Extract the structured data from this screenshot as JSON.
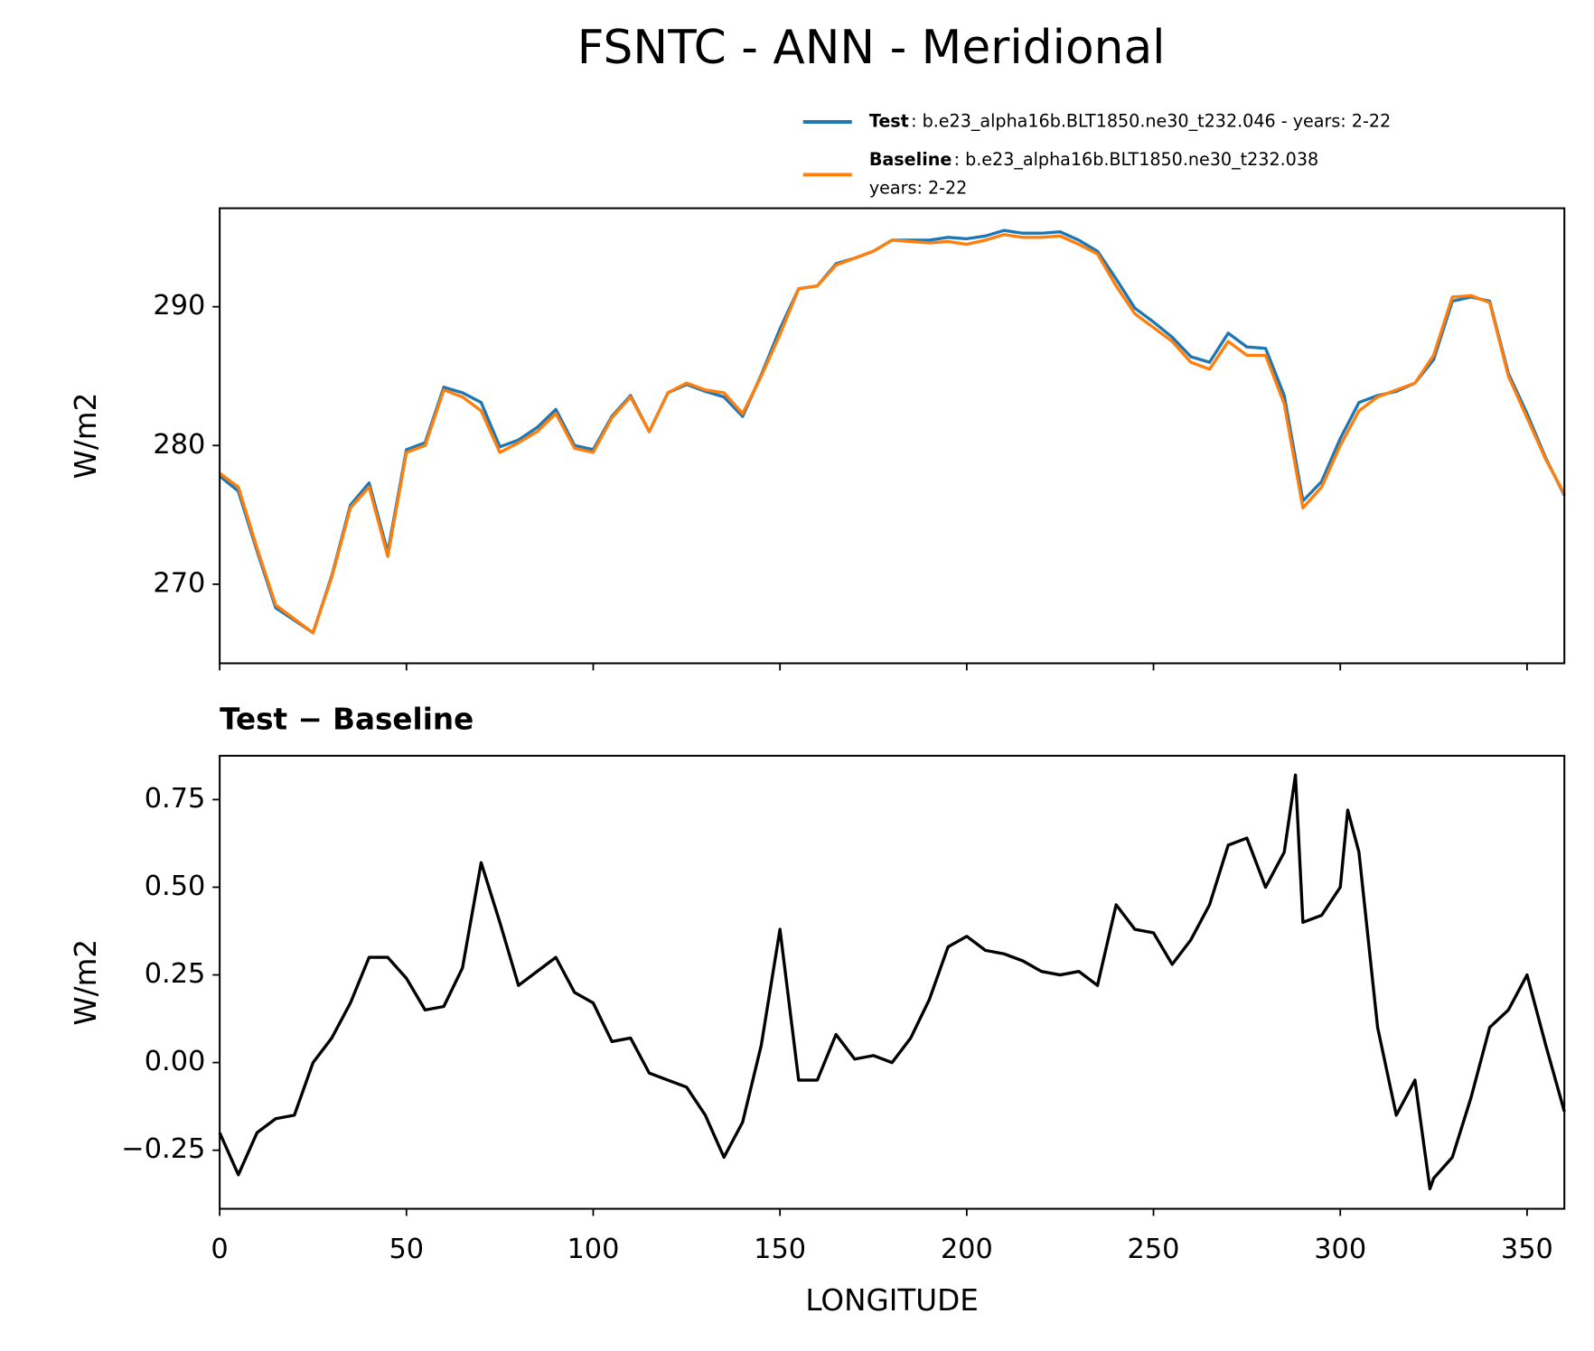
{
  "chart_data": [
    {
      "type": "line",
      "title": "FSNTC - ANN - Meridional",
      "ylabel": "W/m2",
      "x": [
        0,
        5,
        10,
        15,
        20,
        25,
        30,
        35,
        40,
        45,
        50,
        55,
        60,
        65,
        70,
        75,
        80,
        85,
        90,
        95,
        100,
        105,
        110,
        115,
        120,
        125,
        130,
        135,
        140,
        145,
        150,
        155,
        160,
        165,
        170,
        175,
        180,
        185,
        190,
        195,
        200,
        205,
        210,
        215,
        220,
        225,
        230,
        235,
        240,
        245,
        250,
        255,
        260,
        265,
        270,
        275,
        280,
        285,
        290,
        295,
        300,
        305,
        310,
        315,
        320,
        325,
        330,
        335,
        340,
        345,
        350,
        355,
        360
      ],
      "series": [
        {
          "name": "Test",
          "description": [
            ": b.e23_alpha16b.BLT1850.ne30_t232.046 - years: 2-22"
          ],
          "color": "#1f77b4",
          "values": [
            277.8,
            276.7,
            272.4,
            268.3,
            267.4,
            266.5,
            270.6,
            275.7,
            277.3,
            272.3,
            279.7,
            280.2,
            284.2,
            283.8,
            283.1,
            279.9,
            280.4,
            281.3,
            282.6,
            280.0,
            279.7,
            282.1,
            283.6,
            281.0,
            283.8,
            284.4,
            283.9,
            283.5,
            282.1,
            285.1,
            288.4,
            291.3,
            291.5,
            293.1,
            293.5,
            294.0,
            294.8,
            294.8,
            294.8,
            295.0,
            294.9,
            295.1,
            295.5,
            295.3,
            295.3,
            295.4,
            294.8,
            294.0,
            292.0,
            289.9,
            288.9,
            287.8,
            286.4,
            286.0,
            288.1,
            287.1,
            287.0,
            283.6,
            276.0,
            277.4,
            280.5,
            283.1,
            283.6,
            283.9,
            284.5,
            286.2,
            290.4,
            290.7,
            290.4,
            285.2,
            282.3,
            279.1,
            276.4
          ]
        },
        {
          "name": "Baseline",
          "description": [
            ": b.e23_alpha16b.BLT1850.ne30_t232.038",
            "years: 2-22"
          ],
          "color": "#ff7f0e",
          "values": [
            278.0,
            277.0,
            272.6,
            268.5,
            267.5,
            266.5,
            270.5,
            275.5,
            277.0,
            272.0,
            279.5,
            280.0,
            284.0,
            283.5,
            282.5,
            279.5,
            280.2,
            281.0,
            282.3,
            279.8,
            279.5,
            282.0,
            283.5,
            281.0,
            283.8,
            284.5,
            284.0,
            283.8,
            282.3,
            285.0,
            288.0,
            291.3,
            291.5,
            293.0,
            293.5,
            294.0,
            294.8,
            294.7,
            294.6,
            294.7,
            294.5,
            294.8,
            295.2,
            295.0,
            295.0,
            295.1,
            294.5,
            293.8,
            291.5,
            289.5,
            288.5,
            287.5,
            286.0,
            285.5,
            287.5,
            286.5,
            286.5,
            283.0,
            275.5,
            277.0,
            280.0,
            282.5,
            283.5,
            284.0,
            284.5,
            286.5,
            290.7,
            290.8,
            290.3,
            285.0,
            282.0,
            279.0,
            276.5
          ]
        }
      ],
      "xlim": [
        0,
        360
      ],
      "xticks": [
        0,
        50,
        100,
        150,
        200,
        250,
        300,
        350
      ],
      "ylim": [
        264.3,
        297.1
      ],
      "yticks": [
        270,
        280,
        290
      ],
      "legend": "upper right"
    },
    {
      "type": "line",
      "title": "Test − Baseline",
      "ylabel": "W/m2",
      "xlabel": "LONGITUDE",
      "color": "#000000",
      "x": [
        0,
        5,
        10,
        15,
        20,
        25,
        30,
        35,
        40,
        45,
        50,
        55,
        60,
        65,
        70,
        75,
        80,
        85,
        90,
        95,
        100,
        105,
        110,
        115,
        120,
        125,
        130,
        135,
        140,
        145,
        150,
        155,
        160,
        165,
        170,
        175,
        180,
        185,
        190,
        195,
        200,
        205,
        210,
        215,
        220,
        225,
        230,
        235,
        240,
        245,
        250,
        255,
        260,
        265,
        270,
        275,
        280,
        285,
        288,
        290,
        295,
        300,
        302,
        305,
        310,
        315,
        320,
        324,
        325,
        330,
        335,
        340,
        345,
        350,
        355,
        360
      ],
      "values": [
        -0.2,
        -0.32,
        -0.2,
        -0.16,
        -0.15,
        0.0,
        0.07,
        0.17,
        0.3,
        0.3,
        0.24,
        0.15,
        0.16,
        0.27,
        0.57,
        0.4,
        0.22,
        0.26,
        0.3,
        0.2,
        0.17,
        0.06,
        0.07,
        -0.03,
        -0.05,
        -0.07,
        -0.15,
        -0.27,
        -0.17,
        0.05,
        0.38,
        -0.05,
        -0.05,
        0.08,
        0.01,
        0.02,
        0.0,
        0.07,
        0.18,
        0.33,
        0.36,
        0.32,
        0.31,
        0.29,
        0.26,
        0.25,
        0.26,
        0.22,
        0.45,
        0.38,
        0.37,
        0.28,
        0.35,
        0.45,
        0.62,
        0.64,
        0.5,
        0.6,
        0.82,
        0.4,
        0.42,
        0.5,
        0.72,
        0.6,
        0.1,
        -0.15,
        -0.05,
        -0.36,
        -0.33,
        -0.27,
        -0.1,
        0.1,
        0.15,
        0.25,
        0.05,
        -0.14
      ],
      "xlim": [
        0,
        360
      ],
      "xticks": [
        0,
        50,
        100,
        150,
        200,
        250,
        300,
        350
      ],
      "ylim": [
        -0.417,
        0.875
      ],
      "yticks": [
        {
          "value": -0.25,
          "label": "−0.25"
        },
        {
          "value": 0,
          "label": "0.00"
        },
        0.25,
        {
          "value": 0.5,
          "label": "0.50"
        },
        0.75
      ]
    }
  ]
}
